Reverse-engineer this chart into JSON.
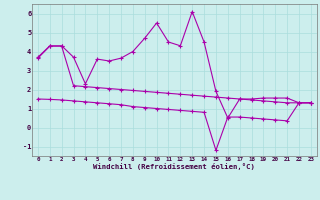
{
  "bg_color": "#cceeed",
  "grid_color": "#aadddd",
  "line_color": "#aa00aa",
  "xlim": [
    -0.5,
    23.5
  ],
  "ylim": [
    -1.5,
    6.5
  ],
  "yticks": [
    -1,
    0,
    1,
    2,
    3,
    4,
    5,
    6
  ],
  "xticks": [
    0,
    1,
    2,
    3,
    4,
    5,
    6,
    7,
    8,
    9,
    10,
    11,
    12,
    13,
    14,
    15,
    16,
    17,
    18,
    19,
    20,
    21,
    22,
    23
  ],
  "xlabel": "Windchill (Refroidissement éolien,°C)",
  "upper_y": [
    3.7,
    4.3,
    4.3,
    3.7,
    2.3,
    3.6,
    3.5,
    3.65,
    4.0,
    4.7,
    5.5,
    4.5,
    4.3,
    6.1,
    4.5,
    1.9,
    0.5,
    1.5,
    1.5,
    1.55,
    1.55,
    1.55,
    1.3,
    1.3
  ],
  "mid_y": [
    3.65,
    4.28,
    4.28,
    2.2,
    2.15,
    2.1,
    2.05,
    2.0,
    1.95,
    1.9,
    1.85,
    1.8,
    1.75,
    1.7,
    1.65,
    1.6,
    1.55,
    1.5,
    1.45,
    1.4,
    1.35,
    1.3,
    1.3,
    1.3
  ],
  "low_y": [
    1.5,
    1.48,
    1.45,
    1.4,
    1.35,
    1.3,
    1.25,
    1.2,
    1.1,
    1.05,
    1.0,
    0.95,
    0.9,
    0.85,
    0.8,
    -1.2,
    0.55,
    0.55,
    0.5,
    0.45,
    0.4,
    0.35,
    1.3,
    1.3
  ]
}
